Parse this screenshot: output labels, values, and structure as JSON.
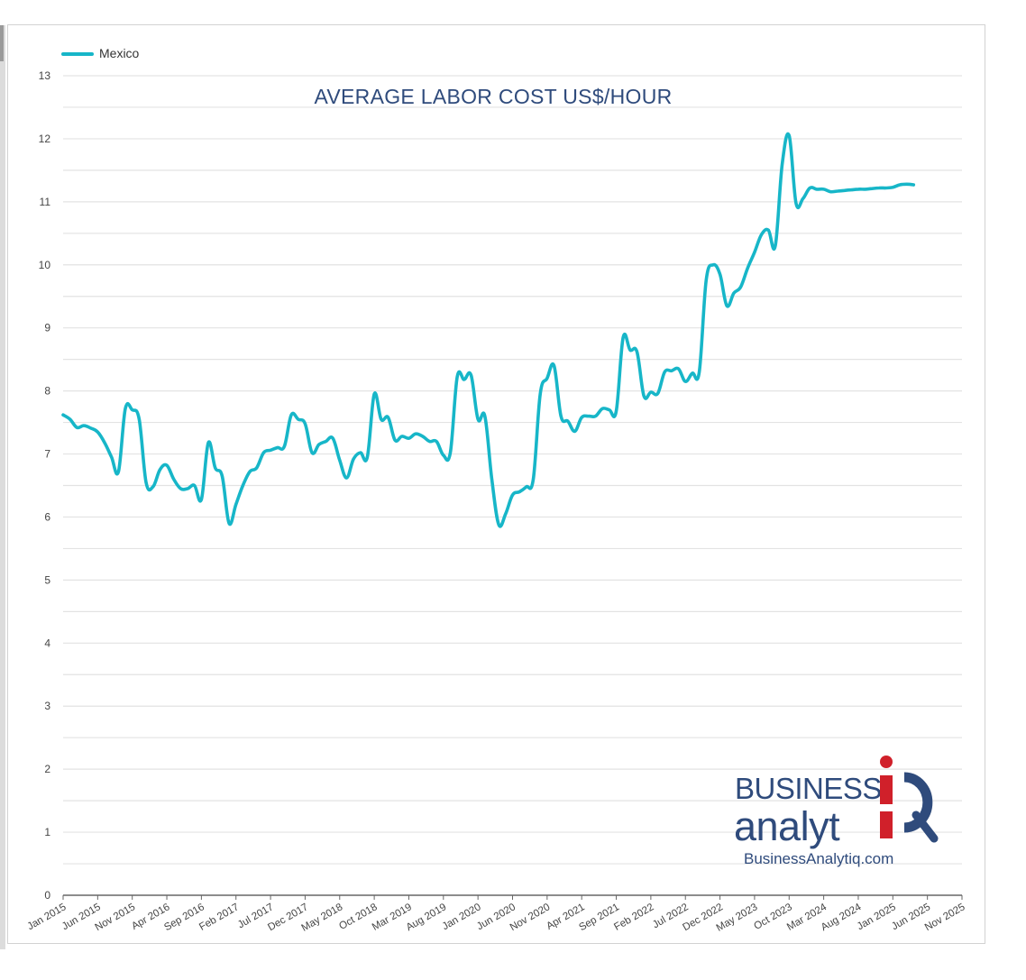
{
  "chart_data": {
    "type": "line",
    "title": "AVERAGE LABOR COST US$/HOUR",
    "xlabel": "",
    "ylabel": "",
    "ylim": [
      0,
      13
    ],
    "yticks": [
      0,
      1,
      2,
      3,
      4,
      5,
      6,
      7,
      8,
      9,
      10,
      11,
      12,
      13
    ],
    "grid": true,
    "legend_position": "top-left",
    "x_tick_labels": [
      "Jan 2015",
      "Jun 2015",
      "Nov 2015",
      "Apr 2016",
      "Sep 2016",
      "Feb 2017",
      "Jul 2017",
      "Dec 2017",
      "May 2018",
      "Oct 2018",
      "Mar 2019",
      "Aug 2019",
      "Jan 2020",
      "Jun 2020",
      "Nov 2020",
      "Apr 2021",
      "Sep 2021",
      "Feb 2022",
      "Jul 2022",
      "Dec 2022",
      "May 2023",
      "Oct 2023",
      "Mar 2024",
      "Aug 2024",
      "Jan 2025",
      "Jun 2025",
      "Nov 2025"
    ],
    "xlim": [
      "2015-01",
      "2025-11"
    ],
    "series": [
      {
        "name": "Mexico",
        "color": "#17b6c8",
        "points": [
          [
            "2015-01",
            7.62
          ],
          [
            "2015-02",
            7.55
          ],
          [
            "2015-03",
            7.42
          ],
          [
            "2015-04",
            7.45
          ],
          [
            "2015-05",
            7.41
          ],
          [
            "2015-06",
            7.35
          ],
          [
            "2015-07",
            7.18
          ],
          [
            "2015-08",
            6.95
          ],
          [
            "2015-09",
            6.72
          ],
          [
            "2015-10",
            7.72
          ],
          [
            "2015-11",
            7.7
          ],
          [
            "2015-12",
            7.55
          ],
          [
            "2016-01",
            6.55
          ],
          [
            "2016-02",
            6.48
          ],
          [
            "2016-03",
            6.75
          ],
          [
            "2016-04",
            6.82
          ],
          [
            "2016-05",
            6.6
          ],
          [
            "2016-06",
            6.45
          ],
          [
            "2016-07",
            6.45
          ],
          [
            "2016-08",
            6.5
          ],
          [
            "2016-09",
            6.28
          ],
          [
            "2016-10",
            7.18
          ],
          [
            "2016-11",
            6.78
          ],
          [
            "2016-12",
            6.65
          ],
          [
            "2017-01",
            5.9
          ],
          [
            "2017-02",
            6.2
          ],
          [
            "2017-03",
            6.5
          ],
          [
            "2017-04",
            6.72
          ],
          [
            "2017-05",
            6.78
          ],
          [
            "2017-06",
            7.02
          ],
          [
            "2017-07",
            7.06
          ],
          [
            "2017-08",
            7.1
          ],
          [
            "2017-09",
            7.12
          ],
          [
            "2017-10",
            7.62
          ],
          [
            "2017-11",
            7.55
          ],
          [
            "2017-12",
            7.48
          ],
          [
            "2018-01",
            7.02
          ],
          [
            "2018-02",
            7.15
          ],
          [
            "2018-03",
            7.2
          ],
          [
            "2018-04",
            7.25
          ],
          [
            "2018-05",
            6.9
          ],
          [
            "2018-06",
            6.62
          ],
          [
            "2018-07",
            6.92
          ],
          [
            "2018-08",
            7.02
          ],
          [
            "2018-09",
            6.95
          ],
          [
            "2018-10",
            7.95
          ],
          [
            "2018-11",
            7.55
          ],
          [
            "2018-12",
            7.58
          ],
          [
            "2019-01",
            7.22
          ],
          [
            "2019-02",
            7.28
          ],
          [
            "2019-03",
            7.25
          ],
          [
            "2019-04",
            7.32
          ],
          [
            "2019-05",
            7.28
          ],
          [
            "2019-06",
            7.2
          ],
          [
            "2019-07",
            7.2
          ],
          [
            "2019-08",
            6.98
          ],
          [
            "2019-09",
            7.02
          ],
          [
            "2019-10",
            8.22
          ],
          [
            "2019-11",
            8.18
          ],
          [
            "2019-12",
            8.25
          ],
          [
            "2020-01",
            7.55
          ],
          [
            "2020-02",
            7.6
          ],
          [
            "2020-03",
            6.6
          ],
          [
            "2020-04",
            5.88
          ],
          [
            "2020-05",
            6.05
          ],
          [
            "2020-06",
            6.35
          ],
          [
            "2020-07",
            6.4
          ],
          [
            "2020-08",
            6.48
          ],
          [
            "2020-09",
            6.6
          ],
          [
            "2020-10",
            7.95
          ],
          [
            "2020-11",
            8.2
          ],
          [
            "2020-12",
            8.4
          ],
          [
            "2021-01",
            7.6
          ],
          [
            "2021-02",
            7.52
          ],
          [
            "2021-03",
            7.36
          ],
          [
            "2021-04",
            7.58
          ],
          [
            "2021-05",
            7.6
          ],
          [
            "2021-06",
            7.6
          ],
          [
            "2021-07",
            7.72
          ],
          [
            "2021-08",
            7.7
          ],
          [
            "2021-09",
            7.68
          ],
          [
            "2021-10",
            8.85
          ],
          [
            "2021-11",
            8.65
          ],
          [
            "2021-12",
            8.62
          ],
          [
            "2022-01",
            7.92
          ],
          [
            "2022-02",
            7.98
          ],
          [
            "2022-03",
            7.96
          ],
          [
            "2022-04",
            8.3
          ],
          [
            "2022-05",
            8.32
          ],
          [
            "2022-06",
            8.35
          ],
          [
            "2022-07",
            8.15
          ],
          [
            "2022-08",
            8.28
          ],
          [
            "2022-09",
            8.3
          ],
          [
            "2022-10",
            9.75
          ],
          [
            "2022-11",
            10.0
          ],
          [
            "2022-12",
            9.85
          ],
          [
            "2023-01",
            9.35
          ],
          [
            "2023-02",
            9.55
          ],
          [
            "2023-03",
            9.65
          ],
          [
            "2023-04",
            9.95
          ],
          [
            "2023-05",
            10.2
          ],
          [
            "2023-06",
            10.48
          ],
          [
            "2023-07",
            10.55
          ],
          [
            "2023-08",
            10.3
          ],
          [
            "2023-09",
            11.6
          ],
          [
            "2023-10",
            12.05
          ],
          [
            "2023-11",
            10.98
          ],
          [
            "2023-12",
            11.05
          ],
          [
            "2024-01",
            11.22
          ],
          [
            "2024-02",
            11.2
          ],
          [
            "2024-03",
            11.2
          ],
          [
            "2024-04",
            11.16
          ],
          [
            "2024-05",
            11.17
          ],
          [
            "2024-06",
            11.18
          ],
          [
            "2024-07",
            11.19
          ],
          [
            "2024-08",
            11.2
          ],
          [
            "2024-09",
            11.2
          ],
          [
            "2024-10",
            11.21
          ],
          [
            "2024-11",
            11.22
          ],
          [
            "2024-12",
            11.22
          ],
          [
            "2025-01",
            11.23
          ],
          [
            "2025-02",
            11.27
          ],
          [
            "2025-03",
            11.28
          ],
          [
            "2025-04",
            11.27
          ]
        ]
      }
    ]
  },
  "logo": {
    "line1": "BUSINESS",
    "line2": "analyt",
    "line3": "BusinessAnalytiq.com",
    "glyph_i": "i",
    "glyph_q": "Q",
    "colors": {
      "navy": "#2f4b7c",
      "red": "#d0202a"
    }
  }
}
